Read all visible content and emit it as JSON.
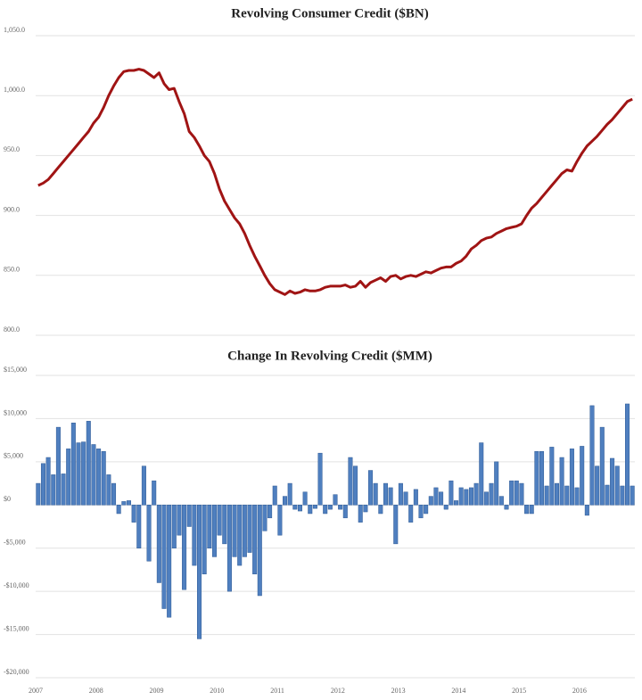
{
  "chart_data": [
    {
      "type": "line",
      "title": "Revolving Consumer Credit ($BN)",
      "color": "#a01414",
      "grid": true,
      "ylim": [
        800,
        1050
      ],
      "yticks": [
        {
          "value": 800,
          "label": "800.0"
        },
        {
          "value": 850,
          "label": "850.0"
        },
        {
          "value": 900,
          "label": "900.0"
        },
        {
          "value": 950,
          "label": "950.0"
        },
        {
          "value": 1000,
          "label": "1,000.0"
        },
        {
          "value": 1050,
          "label": "1,050.0"
        }
      ],
      "values": [
        925,
        927,
        930,
        935,
        940,
        945,
        950,
        955,
        960,
        965,
        970,
        977,
        982,
        990,
        1000,
        1008,
        1015,
        1020,
        1021,
        1021,
        1022,
        1021,
        1018,
        1015,
        1019,
        1010,
        1005,
        1006,
        995,
        985,
        970,
        965,
        958,
        950,
        945,
        935,
        922,
        912,
        905,
        898,
        893,
        885,
        875,
        866,
        858,
        850,
        843,
        838,
        836,
        834,
        837,
        835,
        836,
        838,
        837,
        837,
        838,
        840,
        841,
        841,
        841,
        842,
        840,
        841,
        845,
        840,
        844,
        846,
        848,
        845,
        849,
        850,
        847,
        849,
        850,
        849,
        851,
        853,
        852,
        854,
        856,
        857,
        857,
        860,
        862,
        866,
        872,
        875,
        879,
        881,
        882,
        885,
        887,
        889,
        890,
        891,
        893,
        900,
        906,
        910,
        915,
        920,
        925,
        930,
        935,
        938,
        937,
        945,
        952,
        958,
        962,
        966,
        971,
        976,
        980,
        985,
        990,
        995,
        997
      ]
    },
    {
      "type": "bar",
      "title": "Change In Revolving Credit ($MM)",
      "color": "#4f7fbf",
      "grid": true,
      "ylim": [
        -20000,
        15000
      ],
      "yticks": [
        {
          "value": -20000,
          "label": "-$20,000"
        },
        {
          "value": -15000,
          "label": "-$15,000"
        },
        {
          "value": -10000,
          "label": "-$10,000"
        },
        {
          "value": -5000,
          "label": "-$5,000"
        },
        {
          "value": 0,
          "label": "$0"
        },
        {
          "value": 5000,
          "label": "$5,000"
        },
        {
          "value": 10000,
          "label": "$10,000"
        },
        {
          "value": 15000,
          "label": "$15,000"
        }
      ],
      "categories": [
        "2007",
        null,
        null,
        null,
        null,
        null,
        null,
        null,
        null,
        null,
        null,
        null,
        "2008",
        null,
        null,
        null,
        null,
        null,
        null,
        null,
        null,
        null,
        null,
        null,
        "2009",
        null,
        null,
        null,
        null,
        null,
        null,
        null,
        null,
        null,
        null,
        null,
        "2010",
        null,
        null,
        null,
        null,
        null,
        null,
        null,
        null,
        null,
        null,
        null,
        "2011",
        null,
        null,
        null,
        null,
        null,
        null,
        null,
        null,
        null,
        null,
        null,
        "2012",
        null,
        null,
        null,
        null,
        null,
        null,
        null,
        null,
        null,
        null,
        null,
        "2013",
        null,
        null,
        null,
        null,
        null,
        null,
        null,
        null,
        null,
        null,
        null,
        "2014",
        null,
        null,
        null,
        null,
        null,
        null,
        null,
        null,
        null,
        null,
        null,
        "2015",
        null,
        null,
        null,
        null,
        null,
        null,
        null,
        null,
        null,
        null,
        null,
        "2016",
        null,
        null,
        null,
        null,
        null,
        null,
        null,
        null,
        null,
        null
      ],
      "values": [
        2500,
        4800,
        5500,
        3500,
        9000,
        3600,
        6500,
        9500,
        7200,
        7300,
        9700,
        7000,
        6500,
        6200,
        3500,
        2500,
        -1000,
        400,
        500,
        -2000,
        -5000,
        4500,
        -6500,
        2800,
        -9000,
        -12000,
        -13000,
        -5000,
        -3500,
        -9800,
        -2500,
        -7000,
        -15500,
        -8000,
        -5000,
        -6000,
        -3500,
        -4500,
        -10000,
        -6000,
        -7000,
        -6000,
        -5500,
        -8000,
        -10500,
        -3000,
        -1500,
        2200,
        -3500,
        1000,
        2500,
        -500,
        -700,
        1500,
        -1000,
        -400,
        6000,
        -1000,
        -500,
        1200,
        -500,
        -1500,
        5500,
        4500,
        -2000,
        -800,
        4000,
        2500,
        -1000,
        2500,
        2000,
        -4500,
        2500,
        1500,
        -2000,
        1800,
        -1500,
        -1000,
        1000,
        2000,
        1500,
        -500,
        2800,
        500,
        2000,
        1800,
        2000,
        2500,
        7200,
        1500,
        2500,
        5000,
        1000,
        -500,
        2800,
        2800,
        2500,
        -1000,
        -1000,
        6200,
        6200,
        2200,
        6700,
        2500,
        5500,
        2200,
        6500,
        2000,
        6800,
        -1200,
        11500,
        4500,
        9000,
        2300,
        5400,
        4500,
        2200,
        11700,
        2200
      ]
    }
  ]
}
